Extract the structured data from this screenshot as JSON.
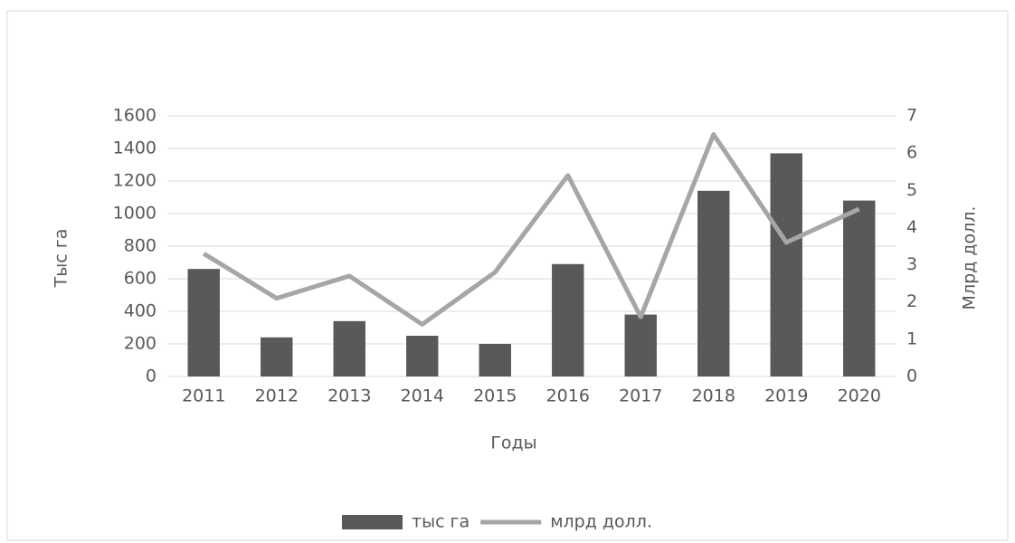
{
  "chart_data": {
    "type": "bar",
    "categories": [
      "2011",
      "2012",
      "2013",
      "2014",
      "2015",
      "2016",
      "2017",
      "2018",
      "2019",
      "2020"
    ],
    "series": [
      {
        "name": "тыс га",
        "color": "#595959",
        "type": "bar",
        "values": [
          660,
          240,
          340,
          250,
          200,
          690,
          380,
          1140,
          1370,
          1080
        ]
      },
      {
        "name": "млрд долл.",
        "color": "#a6a6a6",
        "type": "line",
        "axis": "y2",
        "values": [
          3.3,
          2.1,
          2.7,
          1.4,
          2.8,
          5.4,
          1.6,
          6.5,
          3.6,
          4.5
        ]
      }
    ],
    "xlabel": "Годы",
    "ylabel": "Тыс га",
    "y2label": "Млрд долл.",
    "ylim": [
      0,
      1600
    ],
    "yticks": [
      0,
      200,
      400,
      600,
      800,
      1000,
      1200,
      1400,
      1600
    ],
    "y2lim": [
      0,
      7
    ],
    "y2ticks": [
      0,
      1,
      2,
      3,
      4,
      5,
      6,
      7
    ],
    "grid": true,
    "legend": "bottom"
  }
}
